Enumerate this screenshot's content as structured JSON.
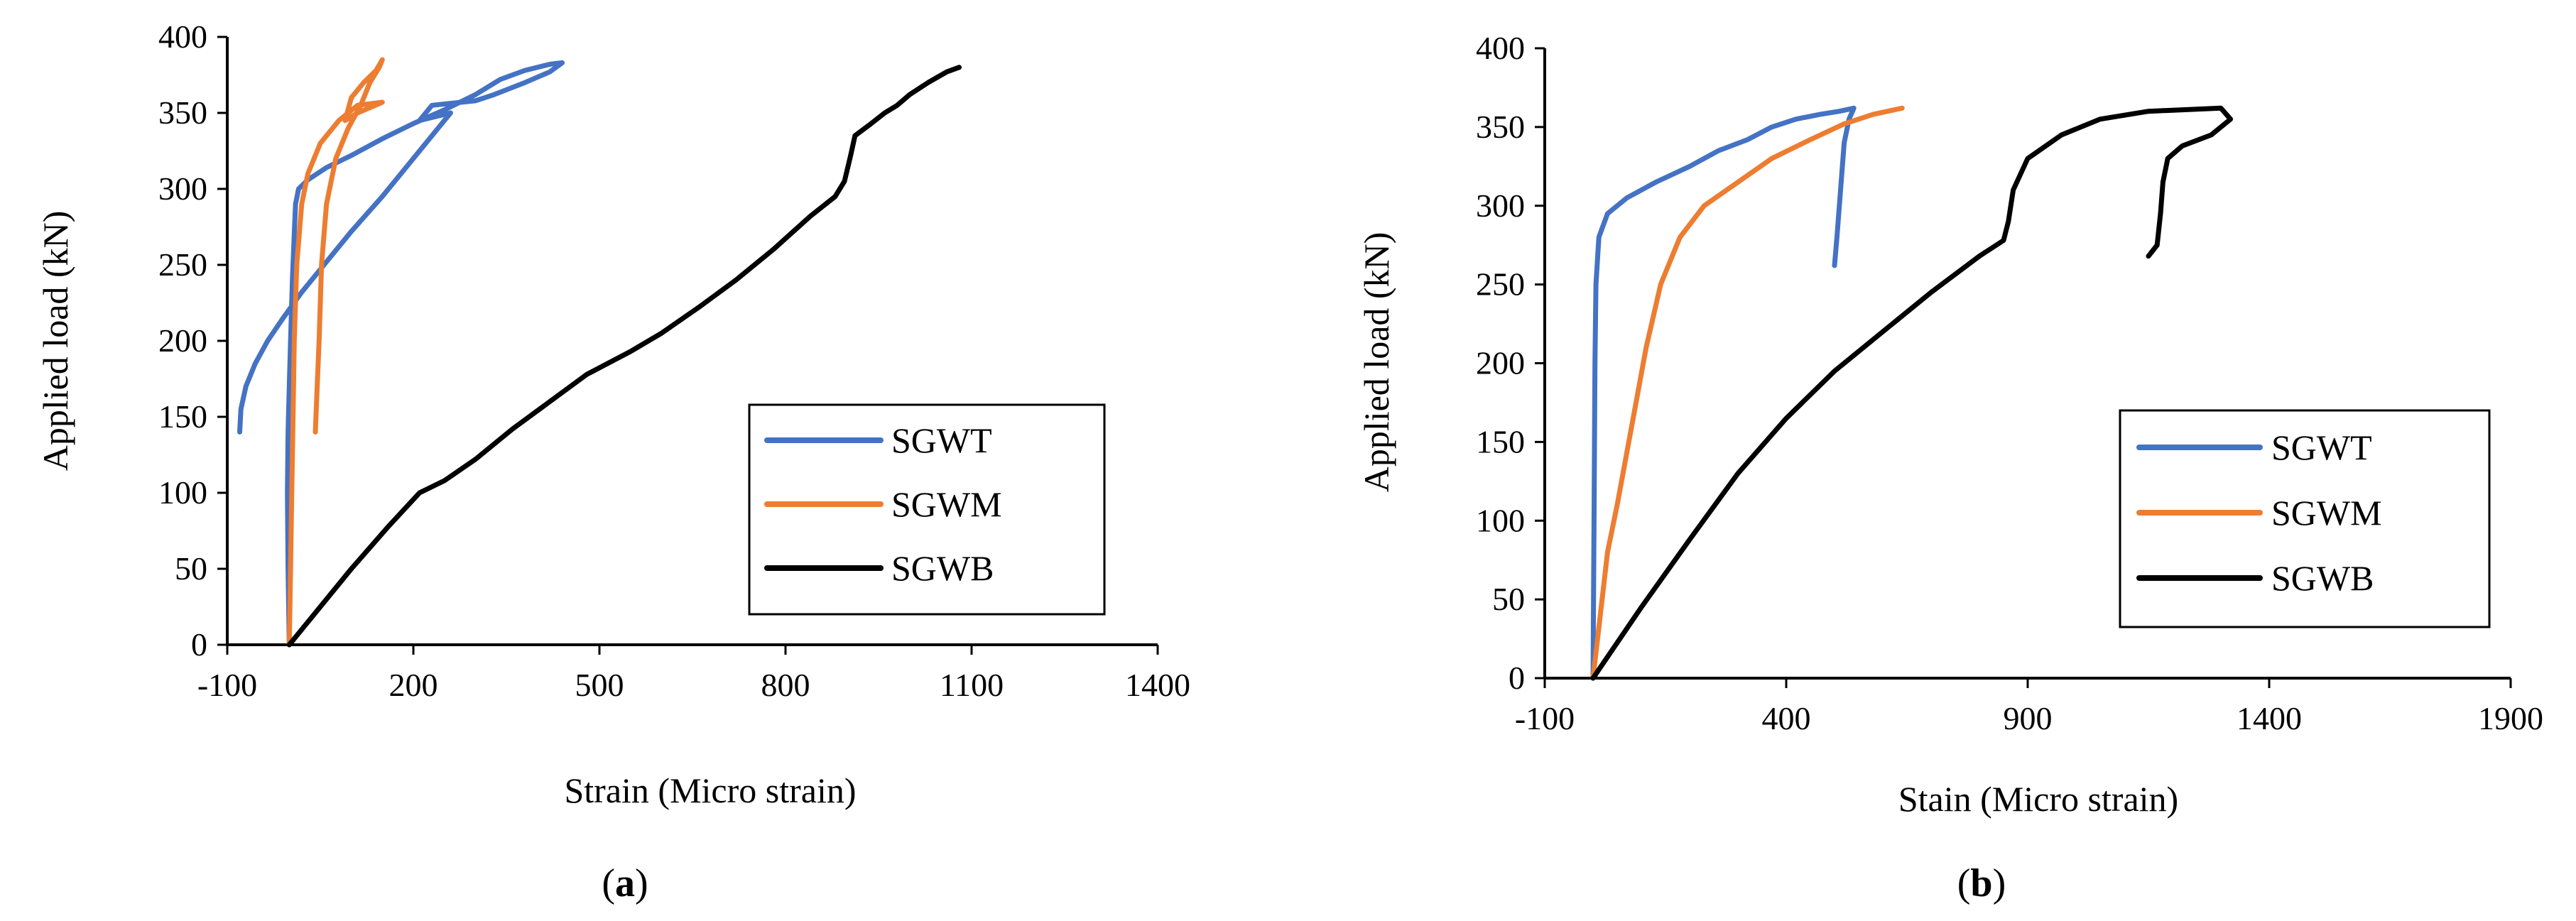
{
  "chart_data": [
    {
      "type": "line",
      "panel_label": "a",
      "title": "",
      "xlabel": "Strain (Micro strain)",
      "ylabel": "Applied load (kN)",
      "xlim": [
        -100,
        1400
      ],
      "ylim": [
        0,
        400
      ],
      "xticks": [
        -100,
        200,
        500,
        800,
        1100,
        1400
      ],
      "yticks": [
        0,
        50,
        100,
        150,
        200,
        250,
        300,
        350,
        400
      ],
      "grid": false,
      "legend_position": "bottom-right",
      "series": [
        {
          "name": "SGWT",
          "color": "#4472C4",
          "points": [
            [
              -80,
              140
            ],
            [
              -78,
              155
            ],
            [
              -70,
              170
            ],
            [
              -55,
              185
            ],
            [
              -35,
              200
            ],
            [
              -10,
              215
            ],
            [
              20,
              232
            ],
            [
              60,
              252
            ],
            [
              100,
              272
            ],
            [
              150,
              295
            ],
            [
              200,
              320
            ],
            [
              240,
              340
            ],
            [
              260,
              350
            ],
            [
              210,
              345
            ],
            [
              230,
              355
            ],
            [
              300,
              358
            ],
            [
              330,
              362
            ],
            [
              380,
              370
            ],
            [
              420,
              377
            ],
            [
              440,
              383
            ],
            [
              420,
              382
            ],
            [
              380,
              378
            ],
            [
              340,
              372
            ],
            [
              300,
              362
            ],
            [
              250,
              352
            ],
            [
              200,
              343
            ],
            [
              150,
              333
            ],
            [
              100,
              322
            ],
            [
              60,
              314
            ],
            [
              30,
              306
            ],
            [
              15,
              300
            ],
            [
              10,
              290
            ],
            [
              8,
              270
            ],
            [
              5,
              240
            ],
            [
              2,
              200
            ],
            [
              0,
              170
            ],
            [
              -2,
              140
            ],
            [
              -3,
              100
            ],
            [
              -2,
              50
            ],
            [
              0,
              0
            ]
          ]
        },
        {
          "name": "SGWM",
          "color": "#ED7D31",
          "points": [
            [
              0,
              0
            ],
            [
              2,
              50
            ],
            [
              4,
              100
            ],
            [
              6,
              150
            ],
            [
              8,
              200
            ],
            [
              12,
              250
            ],
            [
              20,
              290
            ],
            [
              30,
              310
            ],
            [
              50,
              330
            ],
            [
              80,
              345
            ],
            [
              110,
              355
            ],
            [
              150,
              357
            ],
            [
              110,
              350
            ],
            [
              90,
              345
            ],
            [
              100,
              360
            ],
            [
              120,
              370
            ],
            [
              140,
              378
            ],
            [
              150,
              385
            ],
            [
              145,
              380
            ],
            [
              130,
              370
            ],
            [
              115,
              355
            ],
            [
              95,
              340
            ],
            [
              75,
              320
            ],
            [
              60,
              290
            ],
            [
              52,
              250
            ],
            [
              48,
              200
            ],
            [
              45,
              170
            ],
            [
              42,
              140
            ]
          ]
        },
        {
          "name": "SGWB",
          "color": "#000000",
          "points": [
            [
              0,
              0
            ],
            [
              50,
              25
            ],
            [
              100,
              50
            ],
            [
              160,
              78
            ],
            [
              210,
              100
            ],
            [
              250,
              108
            ],
            [
              300,
              122
            ],
            [
              360,
              142
            ],
            [
              420,
              160
            ],
            [
              480,
              178
            ],
            [
              550,
              193
            ],
            [
              600,
              205
            ],
            [
              660,
              222
            ],
            [
              720,
              240
            ],
            [
              780,
              260
            ],
            [
              840,
              282
            ],
            [
              880,
              295
            ],
            [
              895,
              305
            ],
            [
              905,
              322
            ],
            [
              912,
              335
            ],
            [
              935,
              342
            ],
            [
              960,
              350
            ],
            [
              980,
              355
            ],
            [
              1000,
              362
            ],
            [
              1030,
              370
            ],
            [
              1060,
              377
            ],
            [
              1080,
              380
            ]
          ]
        }
      ]
    },
    {
      "type": "line",
      "panel_label": "b",
      "title": "",
      "xlabel": "Stain (Micro strain)",
      "ylabel": "Applied load (kN)",
      "xlim": [
        -100,
        1900
      ],
      "ylim": [
        0,
        400
      ],
      "xticks": [
        -100,
        400,
        900,
        1400,
        1900
      ],
      "yticks": [
        0,
        50,
        100,
        150,
        200,
        250,
        300,
        350,
        400
      ],
      "grid": false,
      "legend_position": "bottom-right",
      "series": [
        {
          "name": "SGWT",
          "color": "#4472C4",
          "points": [
            [
              0,
              0
            ],
            [
              2,
              100
            ],
            [
              4,
              200
            ],
            [
              6,
              250
            ],
            [
              12,
              280
            ],
            [
              30,
              295
            ],
            [
              70,
              305
            ],
            [
              130,
              315
            ],
            [
              200,
              325
            ],
            [
              260,
              335
            ],
            [
              320,
              342
            ],
            [
              370,
              350
            ],
            [
              420,
              355
            ],
            [
              470,
              358
            ],
            [
              510,
              360
            ],
            [
              540,
              362
            ],
            [
              530,
              355
            ],
            [
              520,
              340
            ],
            [
              515,
              320
            ],
            [
              510,
              300
            ],
            [
              505,
              280
            ],
            [
              500,
              262
            ]
          ]
        },
        {
          "name": "SGWM",
          "color": "#ED7D31",
          "points": [
            [
              0,
              0
            ],
            [
              15,
              40
            ],
            [
              30,
              80
            ],
            [
              50,
              110
            ],
            [
              80,
              160
            ],
            [
              110,
              210
            ],
            [
              140,
              250
            ],
            [
              180,
              280
            ],
            [
              230,
              300
            ],
            [
              300,
              315
            ],
            [
              370,
              330
            ],
            [
              450,
              342
            ],
            [
              520,
              352
            ],
            [
              580,
              358
            ],
            [
              610,
              360
            ],
            [
              640,
              362
            ]
          ]
        },
        {
          "name": "SGWB",
          "color": "#000000",
          "points": [
            [
              0,
              0
            ],
            [
              100,
              45
            ],
            [
              200,
              88
            ],
            [
              300,
              130
            ],
            [
              400,
              165
            ],
            [
              500,
              195
            ],
            [
              600,
              220
            ],
            [
              700,
              245
            ],
            [
              800,
              268
            ],
            [
              850,
              278
            ],
            [
              860,
              290
            ],
            [
              870,
              310
            ],
            [
              900,
              330
            ],
            [
              970,
              345
            ],
            [
              1050,
              355
            ],
            [
              1150,
              360
            ],
            [
              1300,
              362
            ],
            [
              1320,
              355
            ],
            [
              1280,
              345
            ],
            [
              1220,
              338
            ],
            [
              1190,
              330
            ],
            [
              1180,
              315
            ],
            [
              1175,
              295
            ],
            [
              1168,
              275
            ],
            [
              1150,
              268
            ]
          ]
        }
      ]
    }
  ]
}
